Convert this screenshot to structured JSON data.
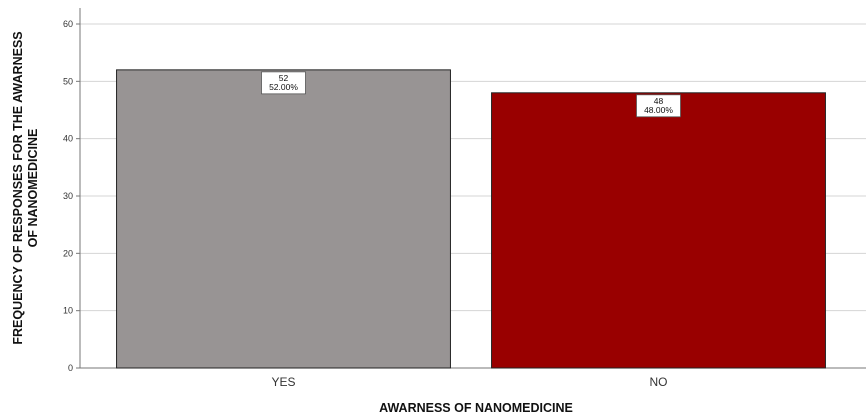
{
  "chart_data": {
    "type": "bar",
    "categories": [
      "YES",
      "NO"
    ],
    "values": [
      52,
      48
    ],
    "value_labels": [
      {
        "count": "52",
        "percent": "52.00%"
      },
      {
        "count": "48",
        "percent": "48.00%"
      }
    ],
    "bar_colors": [
      "#989494",
      "#990000"
    ],
    "title": "",
    "xlabel": "AWARNESS OF NANOMEDICINE",
    "ylabel_lines": [
      "FREQUENCY OF RESPONSES FOR THE AWARNESS",
      "OF NANOMEDICINE"
    ],
    "ylim": [
      0,
      60
    ],
    "yticks": [
      0,
      10,
      20,
      30,
      40,
      50,
      60
    ],
    "grid": true,
    "legend": "none"
  }
}
